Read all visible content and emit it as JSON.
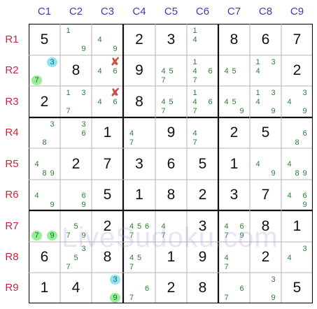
{
  "column_labels": [
    "C1",
    "C2",
    "C3",
    "C4",
    "C5",
    "C6",
    "C7",
    "C8",
    "C9"
  ],
  "row_labels": [
    "R1",
    "R2",
    "R3",
    "R4",
    "R5",
    "R6",
    "R7",
    "R8",
    "R9"
  ],
  "watermark": "LiveSudoku.com",
  "colors": {
    "column_label": "#3b3bb8",
    "row_label": "#c8253c",
    "candidate": "#2e7d32",
    "highlight_blue": "#8fe6f0",
    "highlight_green": "#98ef9a",
    "elimination": "#c0392b"
  },
  "cells": [
    {
      "r": 1,
      "c": 1,
      "given": "5"
    },
    {
      "r": 1,
      "c": 2,
      "cands": [
        1,
        9
      ]
    },
    {
      "r": 1,
      "c": 3,
      "cands": [
        4,
        9
      ]
    },
    {
      "r": 1,
      "c": 4,
      "given": "2"
    },
    {
      "r": 1,
      "c": 5,
      "given": "3"
    },
    {
      "r": 1,
      "c": 6,
      "cands": [
        1,
        4
      ]
    },
    {
      "r": 1,
      "c": 7,
      "given": "8"
    },
    {
      "r": 1,
      "c": 8,
      "given": "6"
    },
    {
      "r": 1,
      "c": 9,
      "given": "7"
    },
    {
      "r": 2,
      "c": 1,
      "cands": [
        3,
        7
      ],
      "highlights": {
        "3": "blue",
        "7": "green"
      }
    },
    {
      "r": 2,
      "c": 2,
      "given": "8"
    },
    {
      "r": 2,
      "c": 3,
      "cands": [
        4,
        6
      ],
      "struck": [
        3
      ]
    },
    {
      "r": 2,
      "c": 4,
      "given": "9"
    },
    {
      "r": 2,
      "c": 5,
      "cands": [
        4,
        5,
        7
      ]
    },
    {
      "r": 2,
      "c": 6,
      "cands": [
        1,
        4,
        6,
        7
      ]
    },
    {
      "r": 2,
      "c": 7,
      "cands": [
        4,
        5
      ]
    },
    {
      "r": 2,
      "c": 8,
      "cands": [
        1,
        3,
        4
      ]
    },
    {
      "r": 2,
      "c": 9,
      "given": "2"
    },
    {
      "r": 3,
      "c": 1,
      "given": "2"
    },
    {
      "r": 3,
      "c": 2,
      "cands": [
        1,
        3,
        7
      ]
    },
    {
      "r": 3,
      "c": 3,
      "cands": [
        4,
        6
      ],
      "struck": [
        3
      ]
    },
    {
      "r": 3,
      "c": 4,
      "given": "8"
    },
    {
      "r": 3,
      "c": 5,
      "cands": [
        4,
        5,
        7
      ]
    },
    {
      "r": 3,
      "c": 6,
      "cands": [
        1,
        4,
        6,
        7
      ]
    },
    {
      "r": 3,
      "c": 7,
      "cands": [
        4,
        5,
        9
      ]
    },
    {
      "r": 3,
      "c": 8,
      "cands": [
        1,
        3,
        4,
        9
      ]
    },
    {
      "r": 3,
      "c": 9,
      "cands": [
        3,
        4,
        9
      ]
    },
    {
      "r": 4,
      "c": 1,
      "cands": [
        3,
        8
      ]
    },
    {
      "r": 4,
      "c": 2,
      "cands": [
        3,
        6
      ]
    },
    {
      "r": 4,
      "c": 3,
      "given": "1"
    },
    {
      "r": 4,
      "c": 4,
      "cands": [
        4,
        7
      ]
    },
    {
      "r": 4,
      "c": 5,
      "given": "9"
    },
    {
      "r": 4,
      "c": 6,
      "cands": [
        4,
        7
      ]
    },
    {
      "r": 4,
      "c": 7,
      "given": "2"
    },
    {
      "r": 4,
      "c": 8,
      "given": "5"
    },
    {
      "r": 4,
      "c": 9,
      "cands": [
        6,
        8
      ]
    },
    {
      "r": 5,
      "c": 1,
      "cands": [
        4,
        8,
        9
      ]
    },
    {
      "r": 5,
      "c": 2,
      "given": "2"
    },
    {
      "r": 5,
      "c": 3,
      "given": "7"
    },
    {
      "r": 5,
      "c": 4,
      "given": "3"
    },
    {
      "r": 5,
      "c": 5,
      "given": "6"
    },
    {
      "r": 5,
      "c": 6,
      "given": "5"
    },
    {
      "r": 5,
      "c": 7,
      "given": "1"
    },
    {
      "r": 5,
      "c": 8,
      "cands": [
        4,
        9
      ]
    },
    {
      "r": 5,
      "c": 9,
      "cands": [
        4,
        8,
        9
      ]
    },
    {
      "r": 6,
      "c": 1,
      "cands": [
        4,
        9
      ]
    },
    {
      "r": 6,
      "c": 2,
      "cands": [
        6,
        9
      ]
    },
    {
      "r": 6,
      "c": 3,
      "given": "5"
    },
    {
      "r": 6,
      "c": 4,
      "given": "1"
    },
    {
      "r": 6,
      "c": 5,
      "given": "8"
    },
    {
      "r": 6,
      "c": 6,
      "given": "2"
    },
    {
      "r": 6,
      "c": 7,
      "given": "3"
    },
    {
      "r": 6,
      "c": 8,
      "given": "7"
    },
    {
      "r": 6,
      "c": 9,
      "cands": [
        4,
        6,
        9
      ]
    },
    {
      "r": 7,
      "c": 1,
      "cands": [
        7,
        9
      ],
      "highlights": {
        "7": "green",
        "9": "green"
      }
    },
    {
      "r": 7,
      "c": 2,
      "cands": [
        5,
        7,
        9
      ]
    },
    {
      "r": 7,
      "c": 3,
      "given": "2"
    },
    {
      "r": 7,
      "c": 4,
      "cands": [
        4,
        5,
        6,
        7
      ]
    },
    {
      "r": 7,
      "c": 5,
      "cands": [
        4,
        7
      ]
    },
    {
      "r": 7,
      "c": 6,
      "given": "3"
    },
    {
      "r": 7,
      "c": 7,
      "cands": [
        4,
        6,
        7,
        9
      ]
    },
    {
      "r": 7,
      "c": 8,
      "given": "8"
    },
    {
      "r": 7,
      "c": 9,
      "given": "1"
    },
    {
      "r": 8,
      "c": 1,
      "given": "6"
    },
    {
      "r": 8,
      "c": 2,
      "cands": [
        3,
        5,
        7
      ]
    },
    {
      "r": 8,
      "c": 3,
      "given": "8"
    },
    {
      "r": 8,
      "c": 4,
      "cands": [
        4,
        5,
        7
      ]
    },
    {
      "r": 8,
      "c": 5,
      "given": "1"
    },
    {
      "r": 8,
      "c": 6,
      "given": "9"
    },
    {
      "r": 8,
      "c": 7,
      "cands": [
        4,
        7
      ]
    },
    {
      "r": 8,
      "c": 8,
      "given": "2"
    },
    {
      "r": 8,
      "c": 9,
      "cands": [
        3,
        4
      ]
    },
    {
      "r": 9,
      "c": 1,
      "given": "1"
    },
    {
      "r": 9,
      "c": 2,
      "given": "4"
    },
    {
      "r": 9,
      "c": 3,
      "cands": [
        3,
        9
      ],
      "highlights": {
        "3": "blue",
        "9": "green"
      }
    },
    {
      "r": 9,
      "c": 4,
      "cands": [
        6,
        7
      ]
    },
    {
      "r": 9,
      "c": 5,
      "given": "2"
    },
    {
      "r": 9,
      "c": 6,
      "given": "8"
    },
    {
      "r": 9,
      "c": 7,
      "cands": [
        6,
        7
      ]
    },
    {
      "r": 9,
      "c": 8,
      "cands": [
        3,
        9
      ]
    },
    {
      "r": 9,
      "c": 9,
      "given": "5"
    }
  ]
}
